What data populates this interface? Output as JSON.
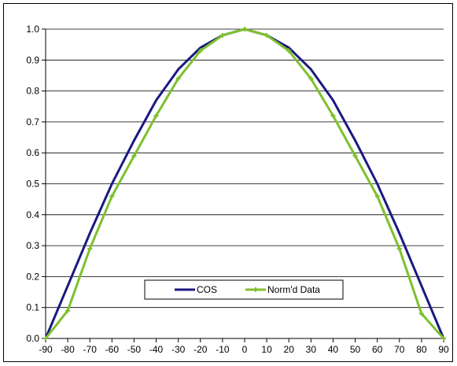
{
  "chart_data": {
    "type": "line",
    "title": "",
    "xlabel": "",
    "ylabel": "",
    "xlim": [
      -90,
      90
    ],
    "ylim": [
      0.0,
      1.0
    ],
    "x": [
      -90,
      -80,
      -70,
      -60,
      -50,
      -40,
      -30,
      -20,
      -10,
      0,
      10,
      20,
      30,
      40,
      50,
      60,
      70,
      80,
      90
    ],
    "x_tick_labels": [
      "-90",
      "-80",
      "-70",
      "-60",
      "-50",
      "-40",
      "-30",
      "-20",
      "-10",
      "0",
      "10",
      "20",
      "30",
      "40",
      "50",
      "60",
      "70",
      "80",
      "90"
    ],
    "y_tick_labels": [
      "0.0",
      "0.1",
      "0.2",
      "0.3",
      "0.4",
      "0.5",
      "0.6",
      "0.7",
      "0.8",
      "0.9",
      "1.0"
    ],
    "grid": "horizontal",
    "legend_placement": "bottom-center",
    "series": [
      {
        "name": "COS",
        "color": "#1a1a80",
        "marker": "none",
        "values": [
          0.0,
          0.17,
          0.34,
          0.5,
          0.64,
          0.77,
          0.87,
          0.94,
          0.98,
          1.0,
          0.98,
          0.94,
          0.87,
          0.77,
          0.64,
          0.5,
          0.34,
          0.17,
          0.0
        ]
      },
      {
        "name": "Norm'd Data",
        "color": "#7ec02d",
        "marker": "plus",
        "values": [
          0.0,
          0.09,
          0.29,
          0.46,
          0.59,
          0.72,
          0.84,
          0.93,
          0.98,
          1.0,
          0.98,
          0.93,
          0.84,
          0.72,
          0.59,
          0.46,
          0.29,
          0.08,
          0.0
        ]
      }
    ]
  }
}
